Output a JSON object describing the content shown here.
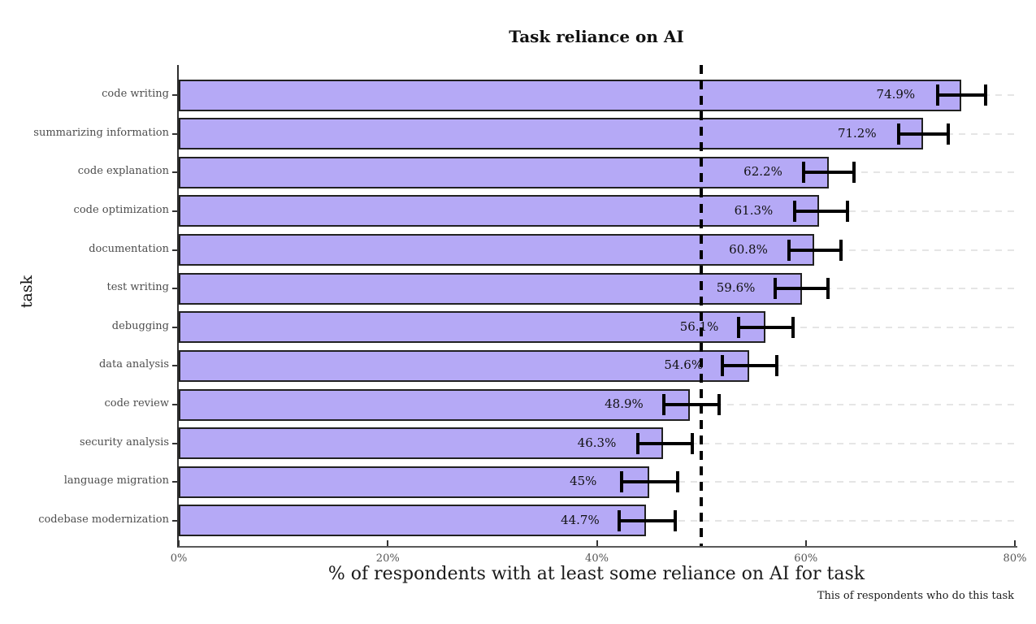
{
  "chart_data": {
    "type": "bar",
    "orientation": "horizontal",
    "title": "Task reliance on AI",
    "xlabel": "% of respondents with at least some reliance on AI for task",
    "ylabel": "task",
    "caption": "This of respondents who do this task",
    "xlim": [
      0,
      80
    ],
    "x_tick_values": [
      0,
      20,
      40,
      60,
      80
    ],
    "x_tick_labels": [
      "0%",
      "20%",
      "40%",
      "60%",
      "80%"
    ],
    "reference_line_x": 50,
    "grid": "horizontal-dashed",
    "categories": [
      "code writing",
      "summarizing information",
      "code explanation",
      "code optimization",
      "documentation",
      "test writing",
      "debugging",
      "data analysis",
      "code review",
      "security analysis",
      "language migration",
      "codebase modernization"
    ],
    "values": [
      74.9,
      71.2,
      62.2,
      61.3,
      60.8,
      59.6,
      56.1,
      54.6,
      48.9,
      46.3,
      45,
      44.7
    ],
    "value_labels": [
      "74.9%",
      "71.2%",
      "62.2%",
      "61.3%",
      "60.8%",
      "59.6%",
      "56.1%",
      "54.6%",
      "48.9%",
      "46.3%",
      "45%",
      "44.7%"
    ],
    "error_low": [
      72.6,
      68.9,
      59.8,
      58.9,
      58.4,
      57.1,
      53.6,
      52.0,
      46.4,
      43.9,
      42.4,
      42.1
    ],
    "error_high": [
      77.2,
      73.6,
      64.6,
      64.0,
      63.4,
      62.1,
      58.8,
      57.2,
      51.7,
      49.1,
      47.7,
      47.5
    ],
    "colors": {
      "bar_fill": "#b5a9f6",
      "bar_border": "#212121",
      "error_bar": "#000000",
      "reference_line": "#000000",
      "gridline": "#e5e5e5",
      "axis_text": "#4d4d4d",
      "background": "#ffffff"
    }
  }
}
